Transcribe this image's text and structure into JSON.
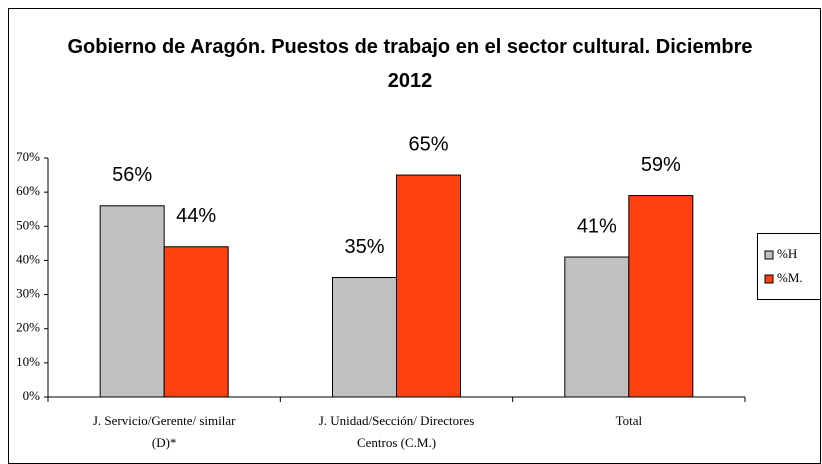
{
  "chart_data": {
    "type": "bar",
    "title": "Gobierno de Aragón. Puestos de trabajo en el sector cultural. Diciembre 2012",
    "categories": [
      "J. Servicio/Gerente/ similar (D)*",
      "J. Unidad/Sección/ Directores Centros (C.M.)",
      "Total"
    ],
    "series": [
      {
        "name": "%H",
        "color": "#c0c0c0",
        "values": [
          56,
          35,
          41
        ],
        "value_labels": [
          "56%",
          "35%",
          "41%"
        ]
      },
      {
        "name": "%M.",
        "color": "#ff4010",
        "values": [
          44,
          65,
          59
        ],
        "value_labels": [
          "44%",
          "65%",
          "59%"
        ]
      }
    ],
    "ylim": [
      0,
      70
    ],
    "yticks": [
      {
        "value": 0,
        "label": "0%"
      },
      {
        "value": 10,
        "label": "10%"
      },
      {
        "value": 20,
        "label": "20%"
      },
      {
        "value": 30,
        "label": "30%"
      },
      {
        "value": 40,
        "label": "40%"
      },
      {
        "value": 50,
        "label": "50%"
      },
      {
        "value": 60,
        "label": "60%"
      },
      {
        "value": 70,
        "label": "70%"
      }
    ],
    "legend": "right"
  }
}
